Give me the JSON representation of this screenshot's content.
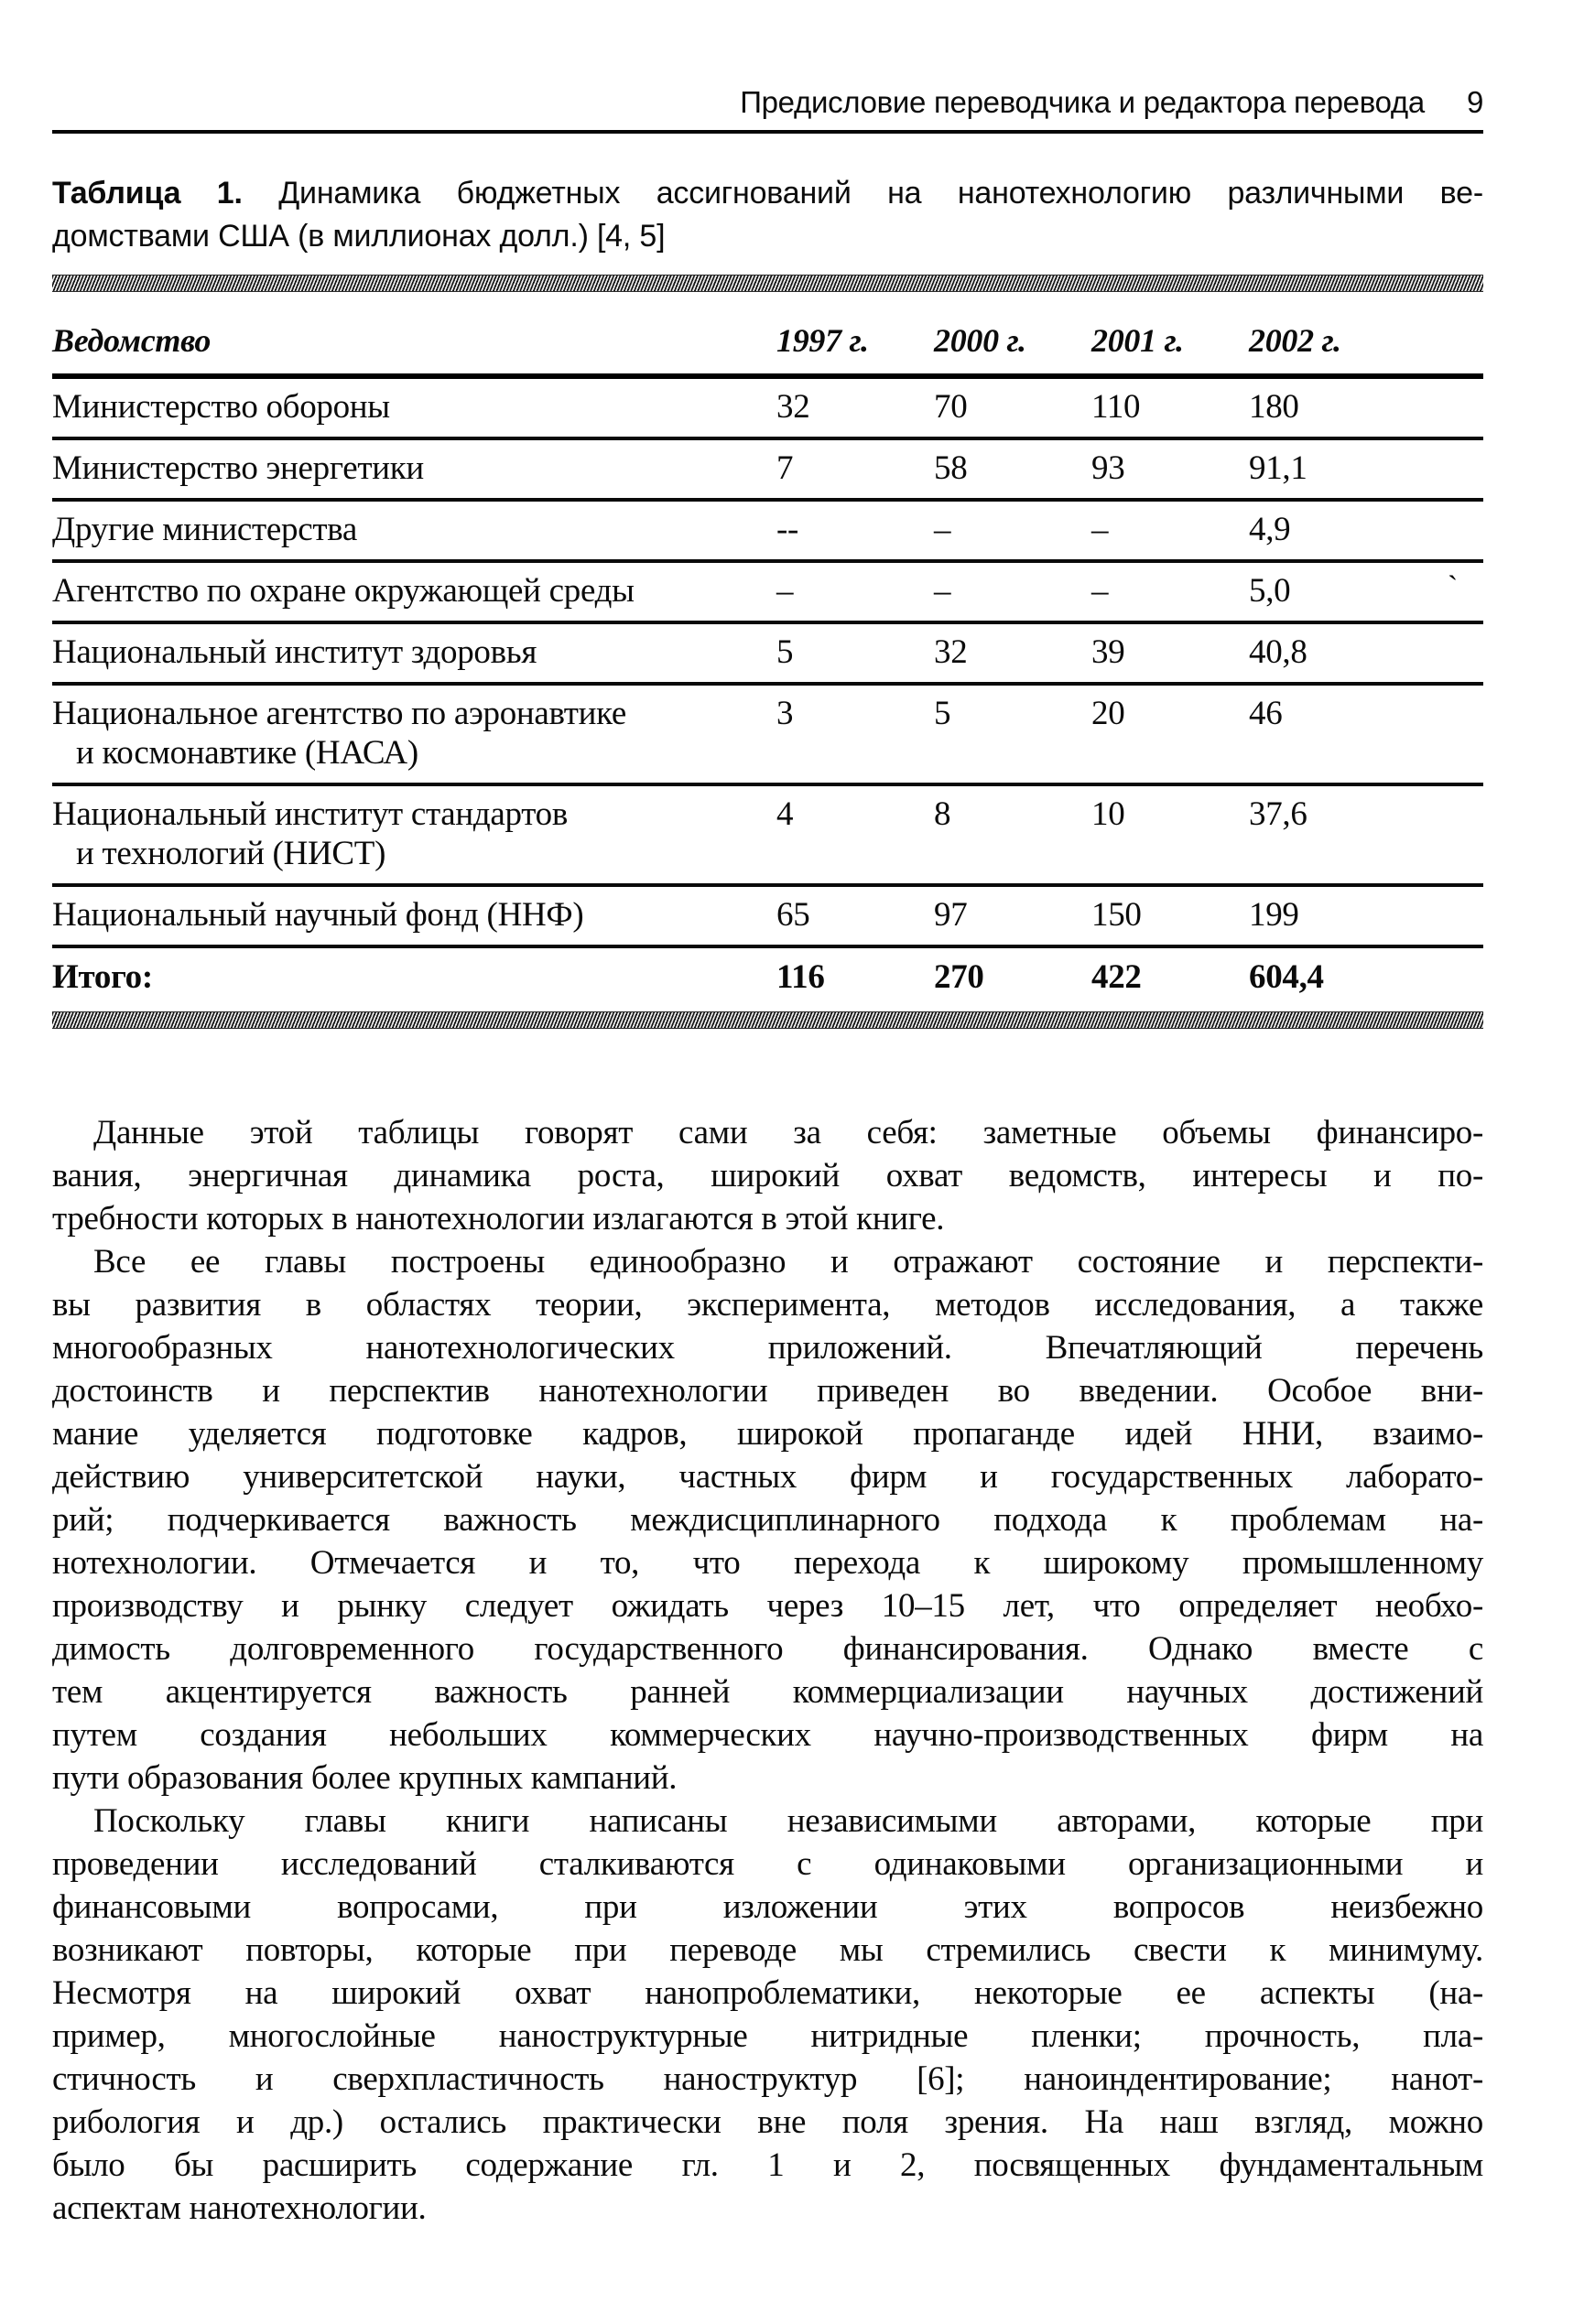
{
  "header": {
    "title": "Предисловие переводчика и редактора перевода",
    "page_number": "9"
  },
  "caption": {
    "label": "Таблица 1.",
    "line1": "Динамика бюджетных ассигнований на нанотехнологию различными ве-",
    "line2": "домствами США (в миллионах долл.) [4, 5]"
  },
  "table": {
    "columns": [
      "Ведомство",
      "1997 г.",
      "2000 г.",
      "2001 г.",
      "2002 г."
    ],
    "rows": [
      {
        "label": "Министерство обороны",
        "values": [
          "32",
          "70",
          "110",
          "180"
        ]
      },
      {
        "label": "Министерство энергетики",
        "values": [
          "7",
          "58",
          "93",
          "91,1"
        ]
      },
      {
        "label": "Другие министерства",
        "values": [
          "--",
          "–",
          "–",
          "4,9"
        ]
      },
      {
        "label": "Агентство по охране окружающей среды",
        "values": [
          "–",
          "–",
          "–",
          "5,0"
        ]
      },
      {
        "label": "Национальный институт здоровья",
        "values": [
          "5",
          "32",
          "39",
          "40,8"
        ]
      },
      {
        "label": "Национальное агентство по аэронавтике",
        "label2": "и космонавтике (НАСА)",
        "values": [
          "3",
          "5",
          "20",
          "46"
        ]
      },
      {
        "label": "Национальный институт стандартов",
        "label2": "и технологий (НИСТ)",
        "values": [
          "4",
          "8",
          "10",
          "37,6"
        ]
      },
      {
        "label": "Национальный научный фонд (ННФ)",
        "values": [
          "65",
          "97",
          "150",
          "199"
        ]
      }
    ],
    "total": {
      "label": "Итого:",
      "values": [
        "116",
        "270",
        "422",
        "604,4"
      ]
    }
  },
  "artifact_mark": "ˋ",
  "paragraphs": [
    {
      "lines": [
        "Данные этой таблицы говорят сами за себя: заметные объемы финансиро-",
        "вания, энергичная динамика роста, широкий охват ведомств, интересы и по-",
        "требности которых в нанотехнологии излагаются в этой книге."
      ]
    },
    {
      "lines": [
        "Все ее главы построены единообразно и отражают состояние и перспекти-",
        "вы развития в областях теории, эксперимента, методов исследования, а также",
        "многообразных нанотехнологических приложений. Впечатляющий перечень",
        "достоинств и перспектив нанотехнологии приведен во введении. Особое вни-",
        "мание уделяется подготовке кадров, широкой пропаганде идей ННИ, взаимо-",
        "действию университетской науки, частных фирм и государственных лаборато-",
        "рий; подчеркивается важность междисциплинарного подхода к проблемам на-",
        "нотехнологии. Отмечается и то, что перехода к широкому промышленному",
        "производству и рынку следует ожидать через 10–15 лет, что определяет необхо-",
        "димость долговременного государственного финансирования. Однако вместе с",
        "тем акцентируется важность ранней коммерциализации научных достижений",
        "путем создания небольших коммерческих научно-производственных фирм на",
        "пути образования более крупных кампаний."
      ]
    },
    {
      "lines": [
        "Поскольку главы книги написаны независимыми авторами, которые при",
        "проведении исследований сталкиваются с одинаковыми организационными и",
        "финансовыми вопросами, при изложении этих вопросов неизбежно",
        "возникают повторы, которые при переводе мы стремились свести к минимуму.",
        "Несмотря на широкий охват нанопроблематики, некоторые ее аспекты (на-",
        "пример, многослойные наноструктурные нитридные пленки; прочность, пла-",
        "стичность и сверхпластичность наноструктур [6]; наноиндентирование; нанот-",
        "рибология и др.) остались практически вне поля зрения. На наш взгляд, можно",
        "было бы расширить содержание гл. 1 и 2, посвященных фундаментальным",
        "аспектам нанотехнологии."
      ]
    }
  ]
}
